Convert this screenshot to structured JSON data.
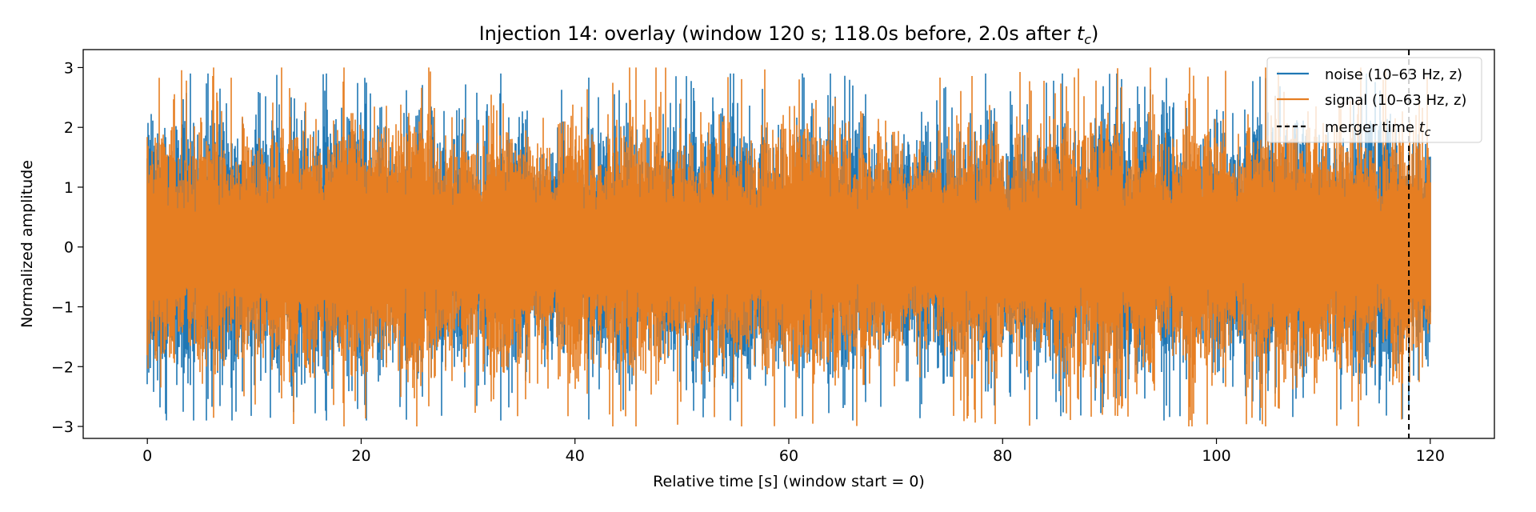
{
  "chart_data": {
    "type": "line",
    "title": "Injection 14: overlay (window 120 s; 118.0s before, 2.0s after ",
    "title_tc": "t",
    "title_tc_sub": "c",
    "title_end": ")",
    "xlabel": "Relative time [s] (window start = 0)",
    "ylabel": "Normalized amplitude",
    "xlim": [
      -6,
      126
    ],
    "ylim": [
      -3.2,
      3.3
    ],
    "xticks": [
      0,
      20,
      40,
      60,
      80,
      100,
      120
    ],
    "yticks": [
      -3,
      -2,
      -1,
      0,
      1,
      2,
      3
    ],
    "x_range": [
      0,
      120
    ],
    "grid": false,
    "legend_position": "top-right",
    "series": [
      {
        "name": "noise (10–63 Hz, z)",
        "color": "#1f77b4",
        "peak_amplitude": 2.9
      },
      {
        "name": "signal (10–63 Hz, z)",
        "color": "#e67e22",
        "peak_amplitude": 3.0
      }
    ],
    "vline": {
      "x": 118,
      "name": "merger time ",
      "name_t": "t",
      "name_sub": "c",
      "color": "#000000",
      "style": "dashed"
    }
  }
}
